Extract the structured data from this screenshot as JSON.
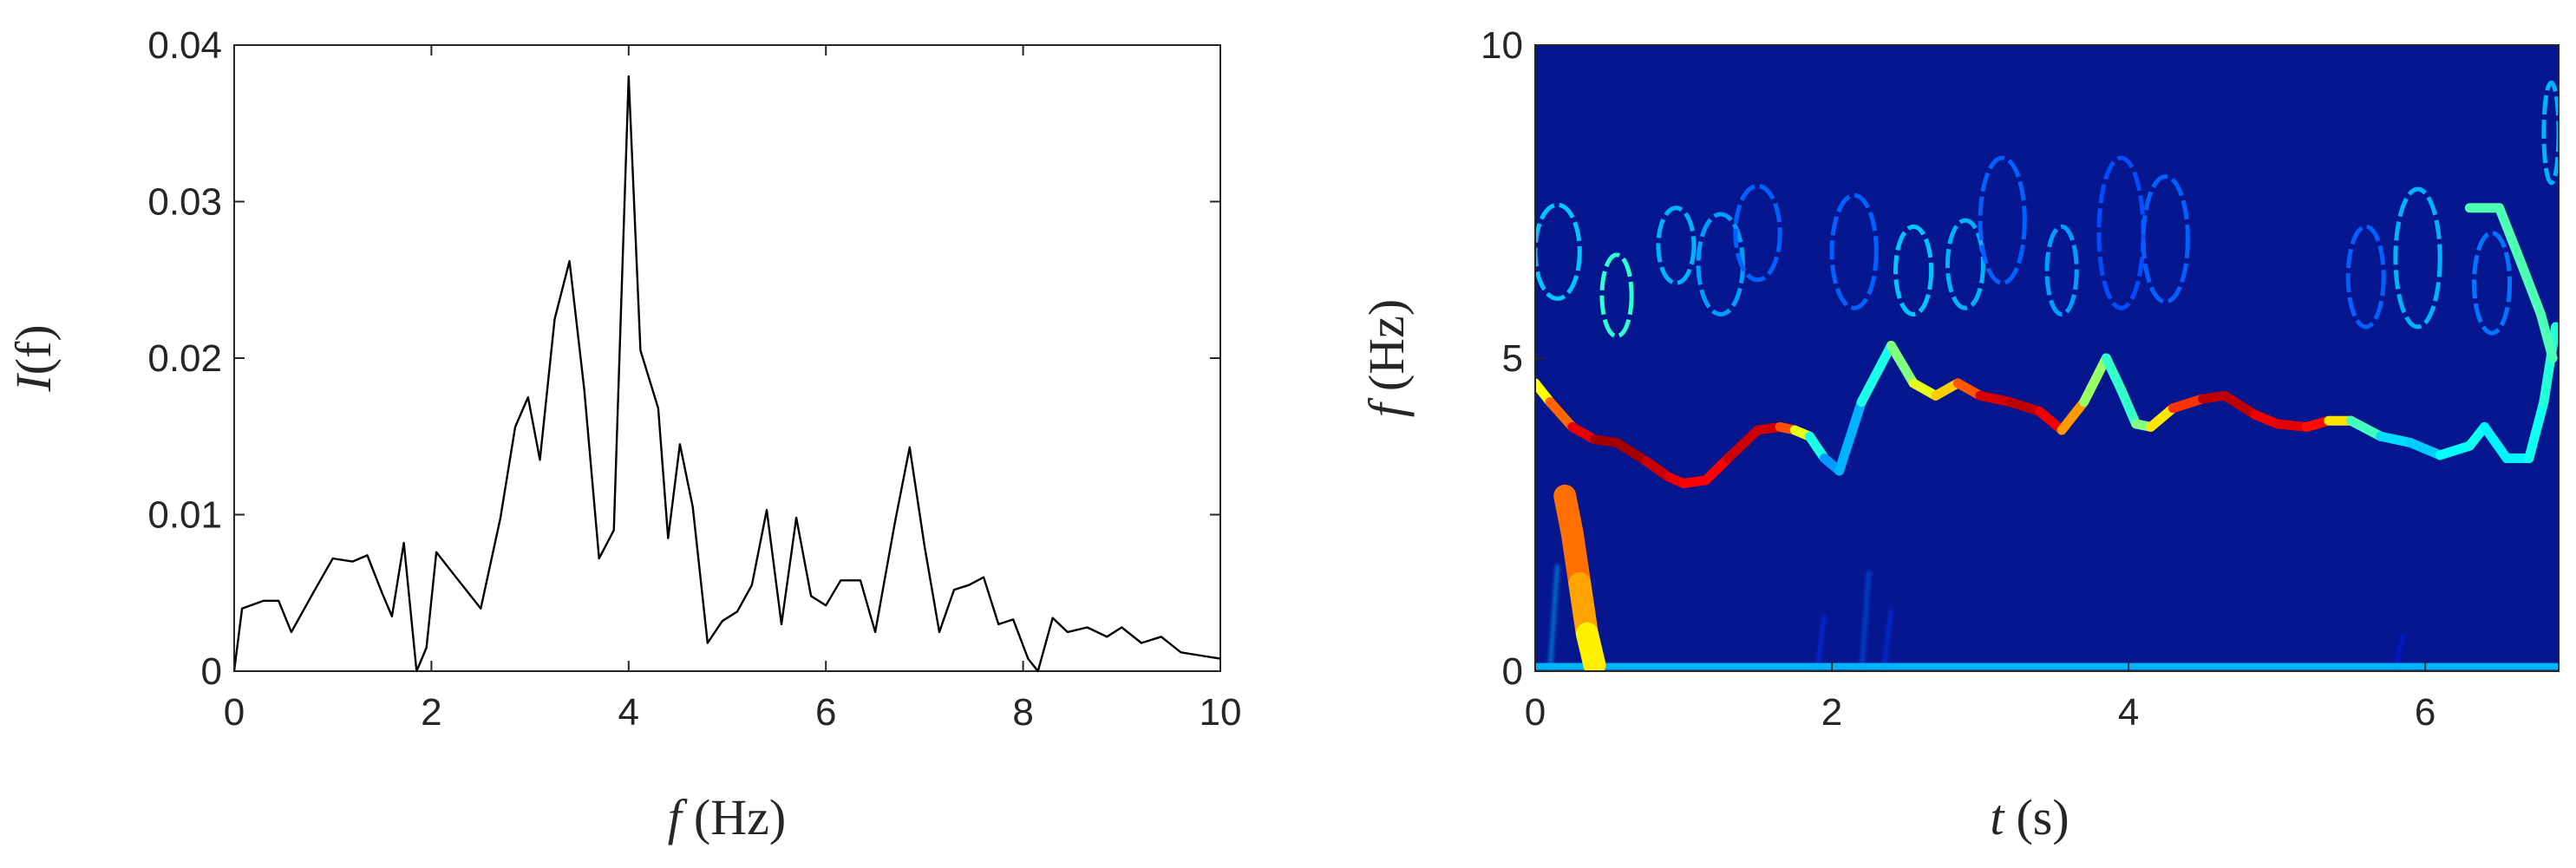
{
  "chart_data": [
    {
      "type": "line",
      "xlabel_var": "f",
      "xlabel_unit": "(Hz)",
      "ylabel_var": "I",
      "ylabel_arg": "(f)",
      "xlim": [
        0,
        10
      ],
      "ylim": [
        0,
        0.04
      ],
      "x_ticks": [
        "0",
        "2",
        "4",
        "6",
        "8",
        "10"
      ],
      "y_ticks": [
        "0",
        "0.01",
        "0.02",
        "0.03",
        "0.04"
      ],
      "line_color": "#000000",
      "grid": false,
      "points": [
        [
          0.0,
          0.0
        ],
        [
          0.08,
          0.004
        ],
        [
          0.3,
          0.0045
        ],
        [
          0.45,
          0.0045
        ],
        [
          0.58,
          0.0025
        ],
        [
          0.8,
          0.005
        ],
        [
          1.0,
          0.0072
        ],
        [
          1.2,
          0.007
        ],
        [
          1.35,
          0.0074
        ],
        [
          1.5,
          0.005
        ],
        [
          1.6,
          0.0035
        ],
        [
          1.72,
          0.0082
        ],
        [
          1.85,
          0.0
        ],
        [
          1.95,
          0.0015
        ],
        [
          2.05,
          0.0076
        ],
        [
          2.25,
          0.006
        ],
        [
          2.5,
          0.004
        ],
        [
          2.7,
          0.0098
        ],
        [
          2.85,
          0.0156
        ],
        [
          2.98,
          0.0175
        ],
        [
          3.1,
          0.0135
        ],
        [
          3.25,
          0.0225
        ],
        [
          3.4,
          0.0262
        ],
        [
          3.55,
          0.018
        ],
        [
          3.7,
          0.0072
        ],
        [
          3.85,
          0.009
        ],
        [
          4.0,
          0.038
        ],
        [
          4.12,
          0.0205
        ],
        [
          4.3,
          0.0168
        ],
        [
          4.4,
          0.0085
        ],
        [
          4.52,
          0.0145
        ],
        [
          4.65,
          0.0105
        ],
        [
          4.8,
          0.0018
        ],
        [
          4.95,
          0.0032
        ],
        [
          5.1,
          0.0038
        ],
        [
          5.25,
          0.0055
        ],
        [
          5.4,
          0.0103
        ],
        [
          5.55,
          0.003
        ],
        [
          5.7,
          0.0098
        ],
        [
          5.85,
          0.0048
        ],
        [
          6.0,
          0.0042
        ],
        [
          6.15,
          0.0058
        ],
        [
          6.35,
          0.0058
        ],
        [
          6.5,
          0.0025
        ],
        [
          6.7,
          0.0095
        ],
        [
          6.85,
          0.0143
        ],
        [
          7.0,
          0.008
        ],
        [
          7.15,
          0.0025
        ],
        [
          7.3,
          0.0052
        ],
        [
          7.45,
          0.0055
        ],
        [
          7.6,
          0.006
        ],
        [
          7.75,
          0.003
        ],
        [
          7.9,
          0.0033
        ],
        [
          8.05,
          0.0008
        ],
        [
          8.15,
          0.0
        ],
        [
          8.3,
          0.0034
        ],
        [
          8.45,
          0.0025
        ],
        [
          8.65,
          0.0028
        ],
        [
          8.85,
          0.0022
        ],
        [
          9.0,
          0.0028
        ],
        [
          9.2,
          0.0018
        ],
        [
          9.4,
          0.0022
        ],
        [
          9.6,
          0.0012
        ],
        [
          9.8,
          0.001
        ],
        [
          10.0,
          0.0008
        ]
      ]
    },
    {
      "type": "heatmap",
      "xlabel_var": "t",
      "xlabel_unit": "(s)",
      "ylabel_var": "f",
      "ylabel_unit": "(Hz)",
      "xlim": [
        0,
        6.9
      ],
      "ylim": [
        0,
        10
      ],
      "x_ticks": [
        "0",
        "2",
        "4",
        "6"
      ],
      "y_ticks": [
        "0",
        "5",
        "10"
      ],
      "colormap": "jet",
      "background_color": "#05168e",
      "ridges": [
        {
          "name": "main",
          "points": [
            [
              0.0,
              4.6,
              0.55
            ],
            [
              0.1,
              4.3,
              0.7
            ],
            [
              0.25,
              3.9,
              0.85
            ],
            [
              0.4,
              3.7,
              0.95
            ],
            [
              0.55,
              3.65,
              0.98
            ],
            [
              0.75,
              3.35,
              0.95
            ],
            [
              0.9,
              3.1,
              0.9
            ],
            [
              1.0,
              3.0,
              0.9
            ],
            [
              1.15,
              3.05,
              0.85
            ],
            [
              1.3,
              3.4,
              0.9
            ],
            [
              1.5,
              3.85,
              0.95
            ],
            [
              1.65,
              3.9,
              0.9
            ],
            [
              1.75,
              3.85,
              0.7
            ],
            [
              1.85,
              3.75,
              0.5
            ],
            [
              1.95,
              3.4,
              0.3
            ],
            [
              2.05,
              3.2,
              0.25
            ],
            [
              2.2,
              4.3,
              0.35
            ],
            [
              2.4,
              5.2,
              0.45
            ],
            [
              2.55,
              4.6,
              0.55
            ],
            [
              2.7,
              4.4,
              0.65
            ],
            [
              2.85,
              4.6,
              0.7
            ],
            [
              3.0,
              4.4,
              0.88
            ],
            [
              3.2,
              4.3,
              0.95
            ],
            [
              3.4,
              4.15,
              0.93
            ],
            [
              3.55,
              3.85,
              0.85
            ],
            [
              3.7,
              4.3,
              0.6
            ],
            [
              3.85,
              5.0,
              0.45
            ],
            [
              3.95,
              4.5,
              0.4
            ],
            [
              4.05,
              3.95,
              0.45
            ],
            [
              4.15,
              3.9,
              0.55
            ],
            [
              4.3,
              4.2,
              0.75
            ],
            [
              4.5,
              4.35,
              0.9
            ],
            [
              4.65,
              4.4,
              0.98
            ],
            [
              4.85,
              4.1,
              0.9
            ],
            [
              5.0,
              3.95,
              0.88
            ],
            [
              5.2,
              3.9,
              0.92
            ],
            [
              5.35,
              4.0,
              0.8
            ],
            [
              5.5,
              4.0,
              0.5
            ],
            [
              5.7,
              3.75,
              0.38
            ],
            [
              5.9,
              3.65,
              0.3
            ],
            [
              6.1,
              3.45,
              0.35
            ],
            [
              6.3,
              3.6,
              0.4
            ],
            [
              6.4,
              3.9,
              0.38
            ],
            [
              6.55,
              3.4,
              0.35
            ],
            [
              6.7,
              3.4,
              0.38
            ],
            [
              6.8,
              4.3,
              0.4
            ],
            [
              6.88,
              5.5,
              0.42
            ]
          ]
        },
        {
          "name": "low-frequency",
          "points": [
            [
              0.2,
              2.8,
              0.75
            ],
            [
              0.25,
              2.2,
              0.78
            ],
            [
              0.3,
              1.4,
              0.75
            ],
            [
              0.35,
              0.6,
              0.68
            ],
            [
              0.4,
              0.1,
              0.6
            ]
          ]
        },
        {
          "name": "upper-arc",
          "points": [
            [
              6.3,
              7.4,
              0.45
            ],
            [
              6.5,
              7.4,
              0.45
            ],
            [
              6.65,
              6.5,
              0.45
            ],
            [
              6.78,
              5.7,
              0.45
            ],
            [
              6.86,
              5.0,
              0.45
            ]
          ]
        }
      ],
      "loops": [
        [
          0.15,
          6.7,
          0.15,
          0.75,
          0.32
        ],
        [
          0.55,
          6.0,
          0.1,
          0.65,
          0.42
        ],
        [
          0.95,
          6.8,
          0.12,
          0.6,
          0.3
        ],
        [
          1.25,
          6.5,
          0.15,
          0.8,
          0.28
        ],
        [
          1.5,
          7.0,
          0.15,
          0.75,
          0.22
        ],
        [
          2.15,
          6.7,
          0.15,
          0.9,
          0.22
        ],
        [
          2.55,
          6.4,
          0.12,
          0.7,
          0.32
        ],
        [
          2.9,
          6.5,
          0.12,
          0.7,
          0.3
        ],
        [
          3.15,
          7.2,
          0.15,
          1.0,
          0.22
        ],
        [
          3.55,
          6.4,
          0.1,
          0.7,
          0.28
        ],
        [
          3.95,
          7.0,
          0.15,
          1.2,
          0.2
        ],
        [
          4.25,
          6.9,
          0.15,
          1.0,
          0.22
        ],
        [
          5.6,
          6.3,
          0.12,
          0.8,
          0.22
        ],
        [
          5.95,
          6.6,
          0.15,
          1.1,
          0.3
        ],
        [
          6.45,
          6.2,
          0.12,
          0.8,
          0.24
        ],
        [
          6.85,
          8.6,
          0.05,
          0.8,
          0.3
        ]
      ],
      "noise_rays": [
        [
          2.2,
          1.6,
          0.22
        ],
        [
          2.35,
          1.0,
          0.18
        ],
        [
          1.9,
          0.9,
          0.18
        ],
        [
          0.1,
          1.7,
          0.3
        ],
        [
          5.8,
          0.6,
          0.15
        ]
      ],
      "baseline_band": [
        0.02,
        0.3
      ]
    }
  ]
}
